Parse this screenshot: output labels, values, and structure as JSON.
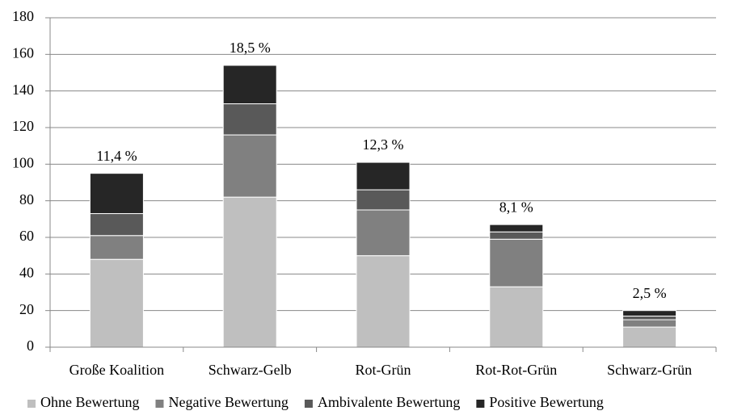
{
  "chart_data": {
    "type": "stacked_bar",
    "categories": [
      "Große Koalition",
      "Schwarz-Gelb",
      "Rot-Grün",
      "Rot-Rot-Grün",
      "Schwarz-Grün"
    ],
    "series": [
      {
        "name": "Ohne Bewertung",
        "color": "#bfbfbf",
        "values": [
          48,
          82,
          50,
          33,
          11
        ]
      },
      {
        "name": "Negative Bewertung",
        "color": "#808080",
        "values": [
          13,
          34,
          25,
          26,
          4
        ]
      },
      {
        "name": "Ambivalente Bewertung",
        "color": "#595959",
        "values": [
          12,
          17,
          11,
          4,
          2
        ]
      },
      {
        "name": "Positive Bewertung",
        "color": "#262626",
        "values": [
          22,
          21,
          15,
          4,
          3
        ]
      }
    ],
    "annotations": [
      "11,4 %",
      "18,5 %",
      "12,3 %",
      "8,1 %",
      "2,5 %"
    ],
    "ylim": [
      0,
      180
    ],
    "yticks": [
      0,
      20,
      40,
      60,
      80,
      100,
      120,
      140,
      160,
      180
    ],
    "grid": true,
    "legend": "bottom"
  }
}
